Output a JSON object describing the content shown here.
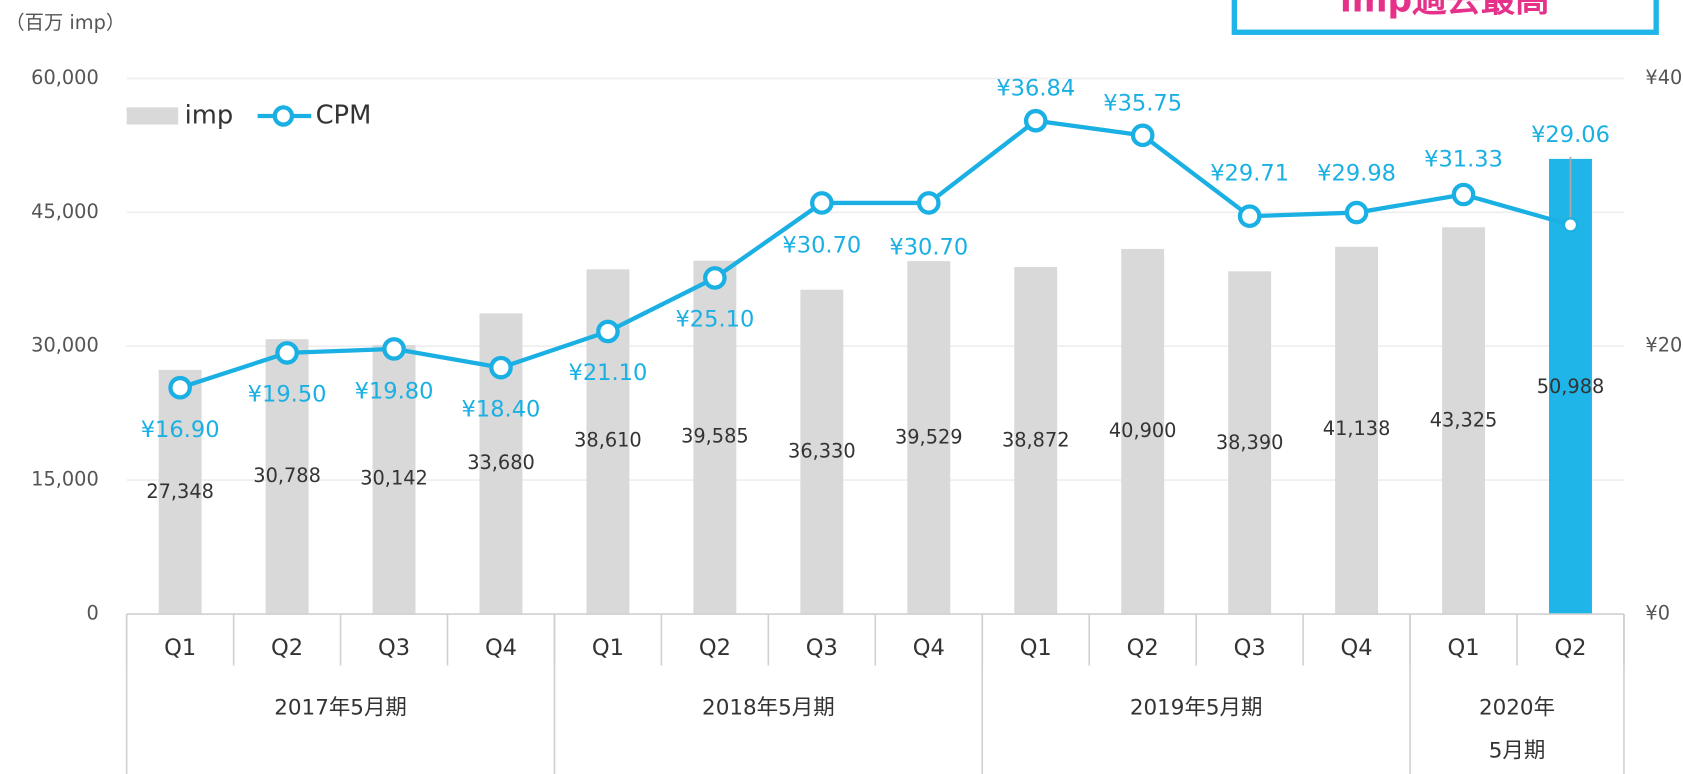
{
  "chart_data": {
    "type": "bar-line",
    "unit_label": "（百万 imp）",
    "annotation": "imp過去最高",
    "categories": [
      "Q1",
      "Q2",
      "Q3",
      "Q4",
      "Q1",
      "Q2",
      "Q3",
      "Q4",
      "Q1",
      "Q2",
      "Q3",
      "Q4",
      "Q1",
      "Q2"
    ],
    "groups": [
      {
        "label": "2017年5月期",
        "span": 4
      },
      {
        "label": "2018年5月期",
        "span": 4
      },
      {
        "label": "2019年5月期",
        "span": 4
      },
      {
        "label": "2020年5月期",
        "span": 2
      }
    ],
    "series": [
      {
        "name": "imp",
        "kind": "bar",
        "color": "#d9d9d9",
        "highlight_color": "#1fb5e8",
        "highlight_index": 13,
        "values": [
          27348,
          30788,
          30142,
          33680,
          38610,
          39585,
          36330,
          39529,
          38872,
          40900,
          38390,
          41138,
          43325,
          50988
        ],
        "value_labels": [
          "27,348",
          "30,788",
          "30,142",
          "33,680",
          "38,610",
          "39,585",
          "36,330",
          "39,529",
          "38,872",
          "40,900",
          "38,390",
          "41,138",
          "43,325",
          "50,988"
        ]
      },
      {
        "name": "CPM",
        "kind": "line",
        "axis": "y2",
        "color": "#1ab0e3",
        "values": [
          16.9,
          19.5,
          19.8,
          18.4,
          21.1,
          25.1,
          30.7,
          30.7,
          36.84,
          35.75,
          29.71,
          29.98,
          31.33,
          29.06
        ],
        "value_labels": [
          "¥16.90",
          "¥19.50",
          "¥19.80",
          "¥18.40",
          "¥21.10",
          "¥25.10",
          "¥30.70",
          "¥30.70",
          "¥36.84",
          "¥35.75",
          "¥29.71",
          "¥29.98",
          "¥31.33",
          "¥29.06"
        ]
      }
    ],
    "ylim": [
      0,
      60000
    ],
    "yticks": [
      0,
      {
        "value": 15000,
        "label": "15,000"
      },
      {
        "value": 30000,
        "label": "30,000"
      },
      {
        "value": 45000,
        "label": "45,000"
      },
      {
        "value": 60000,
        "label": "60,000"
      }
    ],
    "y2lim": [
      0,
      40
    ],
    "y2ticks": [
      {
        "value": 0,
        "label": "¥0"
      },
      {
        "value": 20,
        "label": "¥20"
      },
      {
        "value": 40,
        "label": "¥40"
      }
    ],
    "grid": true
  }
}
